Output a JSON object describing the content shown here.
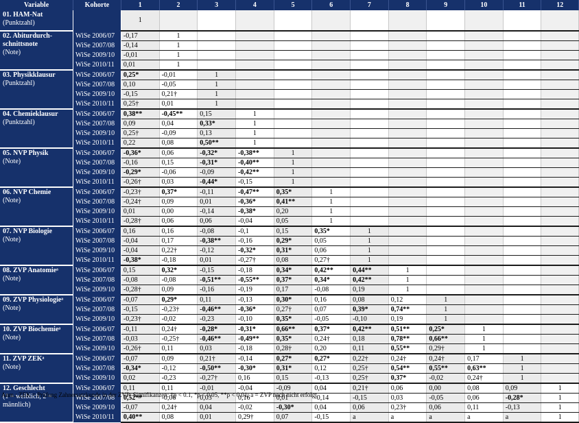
{
  "headers": {
    "variable": "Variable",
    "cohort": "Kohorte",
    "columns": [
      "1",
      "2",
      "3",
      "4",
      "5",
      "6",
      "7",
      "8",
      "9",
      "10",
      "11",
      "12"
    ]
  },
  "groups": [
    {
      "title": "01. HAM-Nat",
      "sub": "(Punktzahl)",
      "rows": [
        {
          "cohort": "",
          "values": [
            "1"
          ]
        }
      ]
    },
    {
      "title": "02. Abiturdurch-schnittsnote",
      "sub": "(Note)",
      "rows": [
        {
          "cohort": "WiSe 2006/07",
          "values": [
            "-0,17",
            "1"
          ]
        },
        {
          "cohort": "WiSe 2007/08",
          "values": [
            "-0,14",
            "1"
          ]
        },
        {
          "cohort": "WiSe 2009/10",
          "values": [
            "-0,01",
            "1"
          ]
        },
        {
          "cohort": "WiSe 2010/11",
          "values": [
            "0,01",
            "1"
          ]
        }
      ]
    },
    {
      "title": "03. Physikklausur",
      "sub": "(Punktzahl)",
      "rows": [
        {
          "cohort": "WiSe 2006/07",
          "values": [
            "0,25*",
            "-0,01",
            "1"
          ]
        },
        {
          "cohort": "WiSe 2007/08",
          "values": [
            "0,10",
            "-0,05",
            "1"
          ]
        },
        {
          "cohort": "WiSe 2009/10",
          "values": [
            "-0,15",
            "0,21†",
            "1"
          ]
        },
        {
          "cohort": "WiSe 2010/11",
          "values": [
            "0,25†",
            "0,01",
            "1"
          ]
        }
      ]
    },
    {
      "title": "04. Chemieklausur",
      "sub": "(Punktzahl)",
      "rows": [
        {
          "cohort": "WiSe 2006/07",
          "values": [
            "0,38**",
            "-0,45**",
            "0,15",
            "1"
          ]
        },
        {
          "cohort": "WiSe 2007/08",
          "values": [
            "0,09",
            "0,04",
            "0,33*",
            "1"
          ]
        },
        {
          "cohort": "WiSe 2009/10",
          "values": [
            "0,25†",
            "-0,09",
            "0,13",
            "1"
          ]
        },
        {
          "cohort": "WiSe 2010/11",
          "values": [
            "0,22",
            "0,08",
            "0,50**",
            "1"
          ]
        }
      ]
    },
    {
      "title": "05. NVP Physik",
      "sub": "(Note)",
      "rows": [
        {
          "cohort": "WiSe 2006/07",
          "values": [
            "-0,36*",
            "0,06",
            "-0,32*",
            "-0,38**",
            "1"
          ]
        },
        {
          "cohort": "WiSe 2007/08",
          "values": [
            "-0,16",
            "0,15",
            "-0,31*",
            "-0,40**",
            "1"
          ]
        },
        {
          "cohort": "WiSe 2009/10",
          "values": [
            "-0,29*",
            "-0,06",
            "-0,09",
            "-0,42**",
            "1"
          ]
        },
        {
          "cohort": "WiSe 2010/11",
          "values": [
            "-0,26†",
            "0,03",
            "-0,44*",
            "-0,15",
            "1"
          ]
        }
      ]
    },
    {
      "title": "06. NVP Chemie",
      "sub": "(Note)",
      "rows": [
        {
          "cohort": "WiSe 2006/07",
          "values": [
            "-0,23†",
            "0,37*",
            "-0,11",
            "-0,47**",
            "0,35*",
            "1"
          ]
        },
        {
          "cohort": "WiSe 2007/08",
          "values": [
            "-0,24†",
            "0,09",
            "0,01",
            "-0,36*",
            "0,41**",
            "1"
          ]
        },
        {
          "cohort": "WiSe 2009/10",
          "values": [
            "0,01",
            "0,00",
            "-0,14",
            "-0,38*",
            "0,20",
            "1"
          ]
        },
        {
          "cohort": "WiSe 2010/11",
          "values": [
            "-0,28†",
            "0,06",
            "0,06",
            "-0,04",
            "0,05",
            "1"
          ]
        }
      ]
    },
    {
      "title": "07. NVP Biologie",
      "sub": "(Note)",
      "rows": [
        {
          "cohort": "WiSe 2006/07",
          "values": [
            "0,16",
            "0,16",
            "-0,08",
            "-0,1",
            "0,15",
            "0,35*",
            "1"
          ]
        },
        {
          "cohort": "WiSe 2007/08",
          "values": [
            "-0,04",
            "0,17",
            "-0,38**",
            "-0,16",
            "0,29*",
            "0,05",
            "1"
          ]
        },
        {
          "cohort": "WiSe 2009/10",
          "values": [
            "-0,04",
            "0,22†",
            "-0,12",
            "-0,32*",
            "0,31*",
            "0,06",
            "1"
          ]
        },
        {
          "cohort": "WiSe 2010/11",
          "values": [
            "-0,38*",
            "-0,18",
            "0,01",
            "-0,27†",
            "0,08",
            "0,27†",
            "1"
          ]
        }
      ]
    },
    {
      "title": "08. ZVP Anatomieᵃ",
      "sub": "(Note)",
      "rows": [
        {
          "cohort": "WiSe 2006/07",
          "values": [
            "0,15",
            "0,32*",
            "-0,15",
            "-0,18",
            "0,34*",
            "0,42**",
            "0,44**",
            "1"
          ]
        },
        {
          "cohort": "WiSe 2007/08",
          "values": [
            "-0,08",
            "-0,08",
            "-0,51**",
            "-0,55**",
            "0,37*",
            "0,34*",
            "0,42**",
            "1"
          ]
        },
        {
          "cohort": "WiSe 2009/10",
          "values": [
            "-0,28†",
            "0,09",
            "-0,16",
            "-0,19",
            "0,17",
            "-0,08",
            "0,19",
            "1"
          ]
        }
      ]
    },
    {
      "title": "09. ZVP Physiologieᵃ",
      "sub": "(Note)",
      "rows": [
        {
          "cohort": "WiSe 2006/07",
          "values": [
            "-0,07",
            "0,29*",
            "0,11",
            "-0,13",
            "0,30*",
            "0,16",
            "0,08",
            "0,12",
            "1"
          ]
        },
        {
          "cohort": "WiSe 2007/08",
          "values": [
            "-0,15",
            "-0,23†",
            "-0,46**",
            "-0,36*",
            "0,27†",
            "0,07",
            "0,39*",
            "0,74**",
            "1"
          ]
        },
        {
          "cohort": "WiSe 2009/10",
          "values": [
            "-0,23†",
            "-0,02",
            "-0,23",
            "-0,10",
            "0,35*",
            "-0,05",
            "-0,10",
            "0,19",
            "1"
          ]
        }
      ]
    },
    {
      "title": "10. ZVP Biochemieᵃ",
      "sub": "(Note)",
      "rows": [
        {
          "cohort": "WiSe 2006/07",
          "values": [
            "-0,11",
            "0,24†",
            "-0,28*",
            "-0,31*",
            "0,66**",
            "0,37*",
            "0,42**",
            "0,51**",
            "0,25*",
            "1"
          ]
        },
        {
          "cohort": "WiSe 2007/08",
          "values": [
            "-0,03",
            "-0,25†",
            "-0,46**",
            "-0,49**",
            "0,35*",
            "0,24†",
            "0,18",
            "0,78**",
            "0,66**",
            "1"
          ]
        },
        {
          "cohort": "WiSe 2009/10",
          "values": [
            "-0,26†",
            "0,11",
            "0,03",
            "-0,18",
            "0,28†",
            "0,20",
            "0,11",
            "0,55**",
            "0,29†",
            "1"
          ]
        }
      ]
    },
    {
      "title": "11. ZVP ZEKᵃ",
      "sub": "(Note)",
      "rows": [
        {
          "cohort": "WiSe 2006/07",
          "values": [
            "-0,07",
            "0,09",
            "0,21†",
            "-0,14",
            "0,27*",
            "0,27*",
            "0,22†",
            "0,24†",
            "0,24†",
            "0,17",
            "1"
          ]
        },
        {
          "cohort": "WiSe 2007/08",
          "values": [
            "-0,34*",
            "-0,12",
            "-0,50**",
            "-0,30*",
            "0,31*",
            "0,12",
            "0,25†",
            "0,54**",
            "0,55**",
            "0,63**",
            "1"
          ]
        },
        {
          "cohort": "WiSe 2009/10",
          "values": [
            "0,02",
            "-0,23",
            "-0,27†",
            "0,16",
            "0,15",
            "-0,13",
            "0,25†",
            "0,37*",
            "-0,02",
            "0,24†",
            "1"
          ]
        }
      ]
    },
    {
      "title": "12. Geschlecht",
      "sub": "(1 = weiblich, 2 = männlich)",
      "rows": [
        {
          "cohort": "WiSe 2006/07",
          "values": [
            "0,11",
            "0,11",
            "-0,01",
            "-0,04",
            "-0,09",
            "0,04",
            "0,21†",
            "0,06",
            "0,00",
            "0,08",
            "0,09",
            "1"
          ]
        },
        {
          "cohort": "WiSe 2007/08",
          "values": [
            "0,52**",
            "-0,06",
            "0,03",
            "0,16",
            "0,01",
            "-0,14",
            "-0,15",
            "0,03",
            "-0,05",
            "0,06",
            "-0,28*",
            "1"
          ]
        },
        {
          "cohort": "WiSe 2009/10",
          "values": [
            "-0,07",
            "0,24†",
            "0,04",
            "-0,02",
            "-0,30*",
            "0,04",
            "0,06",
            "0,23†",
            "0,06",
            "0,11",
            "-0,13",
            "1"
          ]
        },
        {
          "cohort": "WiSe 2010/11",
          "values": [
            "0,40**",
            "0,08",
            "0,01",
            "0,29†",
            "0,07",
            "-0,15",
            "a",
            "a",
            "a",
            "a",
            "a",
            "1"
          ]
        }
      ]
    }
  ],
  "footnote": "Anm.: ZEK = Prüfung Zahnersatzkunde in der ZVP; Signifikanzen: †p < 0.1, *p < 0.05, **p < 0.01; a = ZVP noch nicht erfolgt"
}
